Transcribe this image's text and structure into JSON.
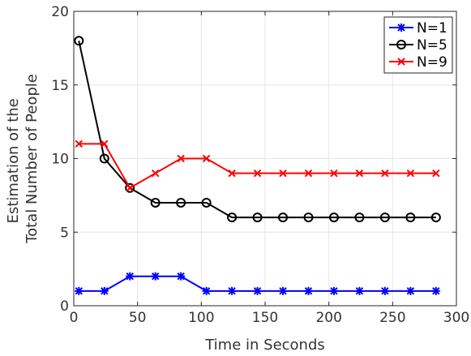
{
  "chart_data": {
    "type": "line",
    "x": [
      4,
      24,
      44,
      64,
      84,
      104,
      124,
      144,
      164,
      184,
      204,
      224,
      244,
      264,
      284
    ],
    "series": [
      {
        "name": "N=1",
        "color": "#0000ff",
        "marker": "asterisk",
        "values": [
          1,
          1,
          2,
          2,
          2,
          1,
          1,
          1,
          1,
          1,
          1,
          1,
          1,
          1,
          1
        ]
      },
      {
        "name": "N=5",
        "color": "#000000",
        "marker": "circle",
        "values": [
          18,
          10,
          8,
          7,
          7,
          7,
          6,
          6,
          6,
          6,
          6,
          6,
          6,
          6,
          6
        ]
      },
      {
        "name": "N=9",
        "color": "#ff0000",
        "marker": "x",
        "values": [
          11,
          11,
          8,
          9,
          10,
          10,
          9,
          9,
          9,
          9,
          9,
          9,
          9,
          9,
          9
        ]
      }
    ],
    "xlabel": "Time in Seconds",
    "ylabel_lines": [
      "Estimation of the",
      "Total Number of People"
    ],
    "xlim": [
      0,
      300
    ],
    "ylim": [
      0,
      20
    ],
    "xticks": [
      0,
      50,
      100,
      150,
      200,
      250,
      300
    ],
    "yticks": [
      0,
      5,
      10,
      15,
      20
    ],
    "grid": true,
    "legend": "top-right"
  }
}
